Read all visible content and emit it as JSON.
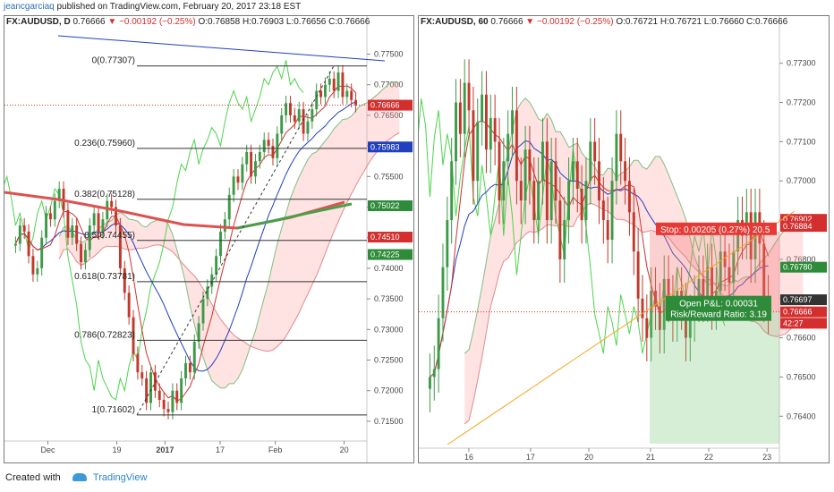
{
  "header": {
    "author": "jeancgarciaq",
    "published_text": "published on TradingView.com, February 20, 2017 23:18 EST"
  },
  "footer": {
    "created_with": "Created with",
    "brand": "TradingView"
  },
  "left": {
    "title_symbol": "FX:AUDUSD, D",
    "title_price": "0.76666",
    "title_change": "▼ −0.00192 (−0.25%)",
    "title_ohlc": "O:0.76858  H:0.76903  L:0.76656  C:0.76666"
  },
  "right": {
    "title_symbol": "FX:AUDUSD, 60",
    "title_price": "0.76666",
    "title_change": "▼ −0.00192 (−0.25%)",
    "title_ohlc": "O:0.76721  H:0.76721  L:0.76660  C:0.76666"
  },
  "colors": {
    "up": "#3d9a48",
    "down": "#c0392b",
    "blue": "#1f3fbf",
    "red": "#d32f2f",
    "green": "#2e8b3a",
    "orange": "#f5a623"
  },
  "chart_data": [
    {
      "type": "line",
      "symbol": "FX:AUDUSD",
      "interval": "D",
      "ylim": [
        0.7125,
        0.778
      ],
      "y_ticks": [
        "0.77500",
        "0.77000",
        "0.76500",
        "0.76000",
        "0.75500",
        "0.75000",
        "0.74500",
        "0.74000",
        "0.73500",
        "0.73000",
        "0.72500",
        "0.72000",
        "0.71500"
      ],
      "x_ticks": [
        "Dec",
        "19",
        "2017",
        "17",
        "Feb",
        "20"
      ],
      "fib_levels": [
        {
          "label": "0(0.77307)",
          "value": 0.77307
        },
        {
          "label": "0.236(0.75960)",
          "value": 0.7596
        },
        {
          "label": "0.382(0.75128)",
          "value": 0.75128
        },
        {
          "label": "0.5(0.74455)",
          "value": 0.74455
        },
        {
          "label": "0.618(0.73781)",
          "value": 0.73781
        },
        {
          "label": "0.786(0.72823)",
          "value": 0.72823
        },
        {
          "label": "1(0.71602)",
          "value": 0.71602
        }
      ],
      "price_tags": [
        {
          "text": "0.76666",
          "value": 0.76666,
          "color": "#d32f2f"
        },
        {
          "text": "0.75983",
          "value": 0.75983,
          "color": "#1f3fbf"
        },
        {
          "text": "0.75022",
          "value": 0.75022,
          "color": "#2e8b3a"
        },
        {
          "text": "0.74510",
          "value": 0.7451,
          "color": "#d32f2f"
        },
        {
          "text": "0.74225",
          "value": 0.74225,
          "color": "#2e8b3a"
        }
      ],
      "close": [
        0.744,
        0.747,
        0.746,
        0.742,
        0.739,
        0.74,
        0.745,
        0.749,
        0.748,
        0.751,
        0.753,
        0.7495,
        0.745,
        0.747,
        0.744,
        0.741,
        0.743,
        0.747,
        0.749,
        0.746,
        0.748,
        0.751,
        0.75,
        0.747,
        0.74,
        0.736,
        0.732,
        0.726,
        0.723,
        0.722,
        0.718,
        0.723,
        0.72,
        0.7185,
        0.717,
        0.7165,
        0.72,
        0.718,
        0.722,
        0.7245,
        0.723,
        0.728,
        0.731,
        0.735,
        0.737,
        0.739,
        0.742,
        0.746,
        0.748,
        0.752,
        0.755,
        0.754,
        0.757,
        0.759,
        0.755,
        0.7575,
        0.759,
        0.761,
        0.76,
        0.758,
        0.762,
        0.765,
        0.767,
        0.765,
        0.764,
        0.766,
        0.762,
        0.764,
        0.766,
        0.769,
        0.768,
        0.77,
        0.771,
        0.769,
        0.772,
        0.768,
        0.769,
        0.7675,
        0.7667
      ]
    },
    {
      "type": "line",
      "symbol": "FX:AUDUSD",
      "interval": "60",
      "ylim": [
        0.7633,
        0.7737
      ],
      "y_ticks": [
        "0.77300",
        "0.77200",
        "0.77100",
        "0.77000",
        "0.76900",
        "0.76800",
        "0.76700",
        "0.76600",
        "0.76500",
        "0.76400"
      ],
      "x_ticks": [
        "16",
        "17",
        "20",
        "21",
        "22",
        "23"
      ],
      "price_tags": [
        {
          "text": "0.76902",
          "value": 0.76902,
          "color": "#d32f2f"
        },
        {
          "text": "0.76884",
          "value": 0.76884,
          "color": "#d32f2f"
        },
        {
          "text": "0.76780",
          "value": 0.7678,
          "color": "#2e8b3a"
        },
        {
          "text": "0.76697",
          "value": 0.76697,
          "color": "#333333"
        },
        {
          "text": "0.76666",
          "value": 0.76666,
          "color": "#d32f2f"
        },
        {
          "text": "42:27",
          "value": 0.76637,
          "color": "#d32f2f"
        }
      ],
      "trade": {
        "entry": 0.76666,
        "stop": 0.76871,
        "target": 0.7633,
        "stop_label": "Stop: 0.00205 (0.27%) 20.5",
        "pnl_label": "Open P&L: 0.00031",
        "rr_label": "Risk/Reward Ratio: 3.19"
      },
      "close": [
        0.765,
        0.7652,
        0.7665,
        0.7678,
        0.769,
        0.7705,
        0.772,
        0.7712,
        0.7725,
        0.7718,
        0.77,
        0.7715,
        0.7722,
        0.7708,
        0.7716,
        0.771,
        0.7695,
        0.7705,
        0.7712,
        0.7718,
        0.77,
        0.7695,
        0.7708,
        0.77,
        0.769,
        0.77,
        0.771,
        0.769,
        0.7705,
        0.7695,
        0.768,
        0.769,
        0.77,
        0.7705,
        0.7698,
        0.769,
        0.77,
        0.771,
        0.7705,
        0.7695,
        0.769,
        0.7685,
        0.77,
        0.7712,
        0.7705,
        0.77,
        0.7692,
        0.7682,
        0.767,
        0.7665,
        0.766,
        0.7672,
        0.7668,
        0.7662,
        0.7675,
        0.767,
        0.7665,
        0.7672,
        0.7668,
        0.766,
        0.7665,
        0.767,
        0.7675,
        0.767,
        0.7678,
        0.7668,
        0.7672,
        0.7682,
        0.7678,
        0.7674,
        0.7682,
        0.769,
        0.7686,
        0.7692,
        0.768,
        0.7692,
        0.7684,
        0.767,
        0.7667
      ]
    }
  ]
}
